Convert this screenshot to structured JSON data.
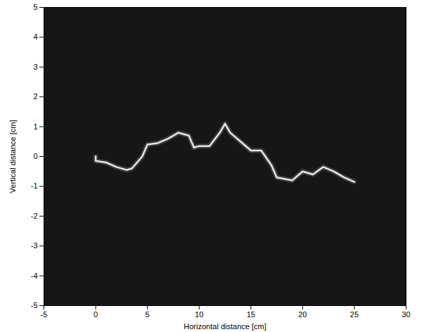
{
  "chart_data": {
    "type": "line",
    "xlabel": "Horizontal distance [cm]",
    "ylabel": "Vertical distance [cm]",
    "x": [
      0,
      0,
      1,
      2,
      3,
      3.5,
      4.5,
      5,
      6,
      7,
      8,
      9,
      9.5,
      10,
      11,
      12,
      12.5,
      13,
      14,
      15,
      16,
      17,
      17.5,
      19,
      20,
      21,
      22,
      23,
      24,
      25
    ],
    "values": [
      0.0,
      -0.15,
      -0.2,
      -0.35,
      -0.45,
      -0.4,
      0.0,
      0.4,
      0.45,
      0.6,
      0.8,
      0.7,
      0.3,
      0.35,
      0.35,
      0.8,
      1.1,
      0.8,
      0.5,
      0.2,
      0.2,
      -0.3,
      -0.7,
      -0.8,
      -0.5,
      -0.6,
      -0.35,
      -0.5,
      -0.7,
      -0.85
    ],
    "color": "#e6e6e6",
    "line_style": "solid",
    "xlim": [
      -5,
      30
    ],
    "ylim": [
      -5,
      5
    ],
    "xticks": [
      -5,
      0,
      5,
      10,
      15,
      20,
      25,
      30
    ],
    "yticks": [
      -5,
      -4,
      -3,
      -2,
      -1,
      0,
      1,
      2,
      3,
      4,
      5
    ],
    "grid": false
  }
}
